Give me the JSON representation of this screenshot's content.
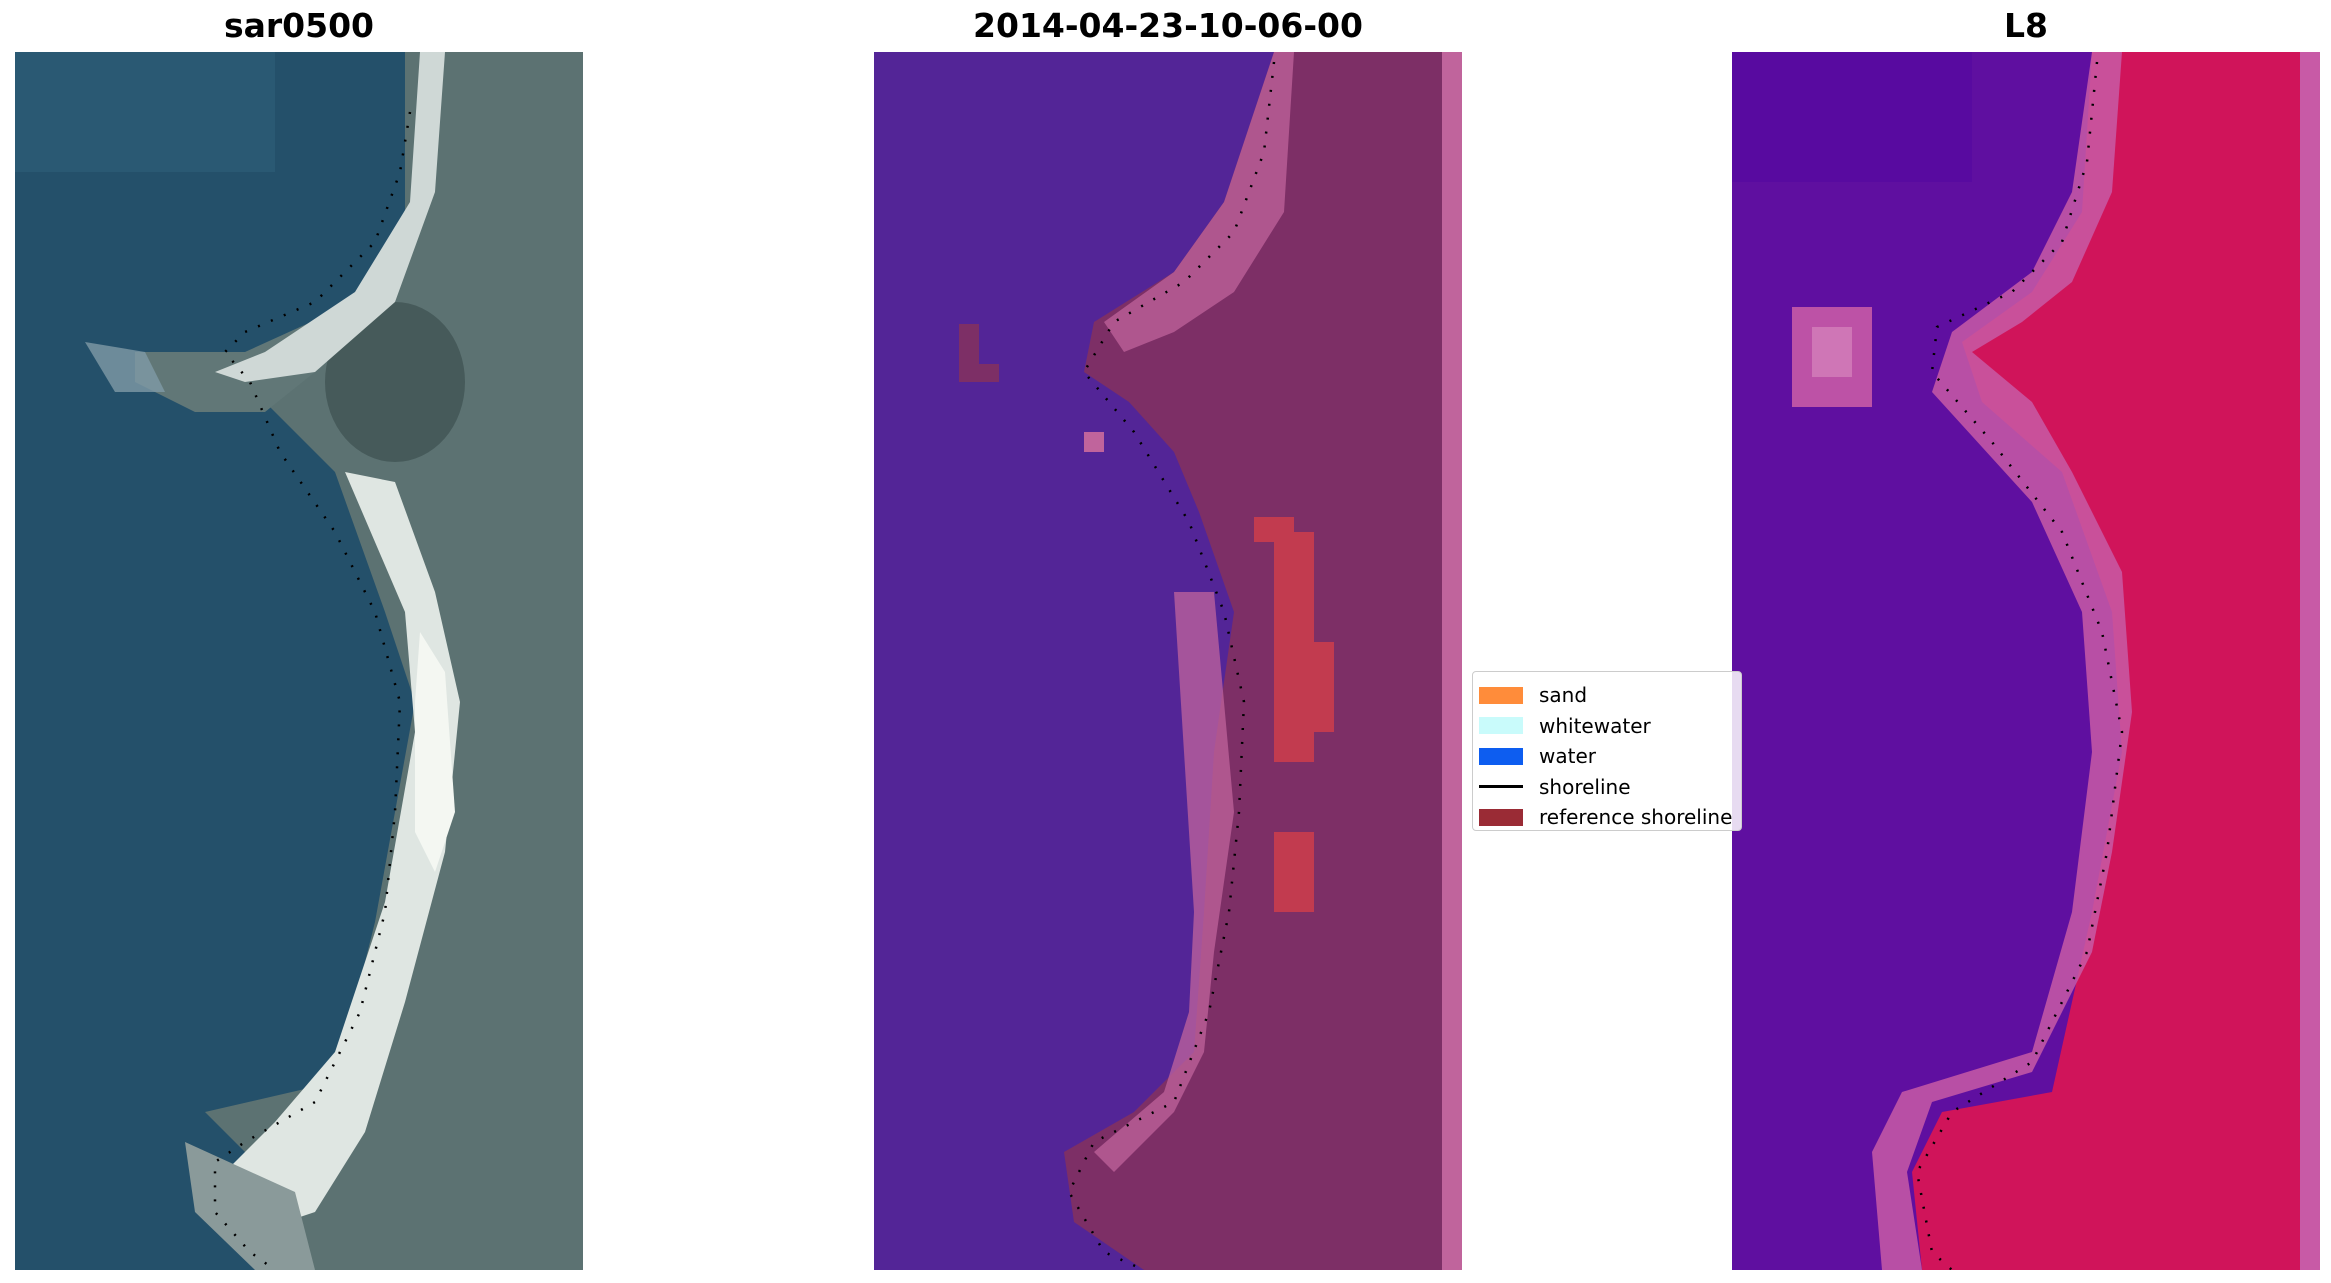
{
  "panels": [
    {
      "title": "sar0500"
    },
    {
      "title": "2014-04-23-10-06-00"
    },
    {
      "title": "L8"
    }
  ],
  "legend": {
    "items": [
      {
        "label": "sand",
        "color": "#ff8c3a",
        "kind": "patch"
      },
      {
        "label": "whitewater",
        "color": "#c9fbfb",
        "kind": "patch"
      },
      {
        "label": "water",
        "color": "#0d5df0",
        "kind": "patch"
      },
      {
        "label": "shoreline",
        "color": "#000000",
        "kind": "line"
      },
      {
        "label": "reference shoreline",
        "color": "#9a2b35",
        "kind": "patch"
      }
    ]
  },
  "colors": {
    "rgb_water": "#24506a",
    "rgb_land": "#5c7272",
    "rgb_beach": "#dfe6e2",
    "class_water": "#532597",
    "class_land": "#7d2f66",
    "class_beach": "#c0649c",
    "class_highlight": "#c23b4f",
    "false_water": "#5f0fa0",
    "false_land": "#d0145a",
    "false_beach": "#c85aa6"
  }
}
